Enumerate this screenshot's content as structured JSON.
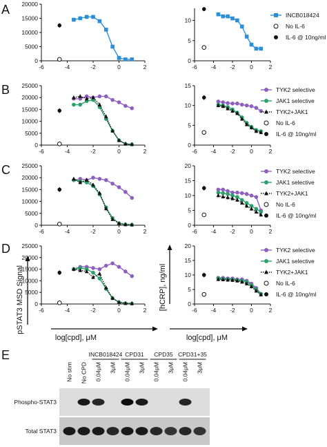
{
  "colors": {
    "inhibitor": "#2a8fd6",
    "tyk2": "#8e5fc0",
    "jak1": "#2aa06a",
    "combo": "#111111"
  },
  "chart_data": [
    {
      "panel": "A",
      "side": "left",
      "type": "scatter",
      "xlim": [
        -6,
        2
      ],
      "ylim": [
        0,
        20000
      ],
      "xticks": [
        "-6",
        "-4",
        "-2",
        "0",
        "2"
      ],
      "yticks": [
        "0",
        "5000",
        "10000",
        "15000",
        "20000"
      ],
      "series": [
        {
          "name": "INCB018424",
          "marker": "square",
          "color": "inhibitor",
          "x": [
            -3.5,
            -3,
            -2.5,
            -2,
            -1.5,
            -1,
            -0.5,
            0,
            0.5,
            1
          ],
          "y": [
            14500,
            15000,
            15500,
            15500,
            14000,
            11000,
            5000,
            1000,
            500,
            500
          ],
          "fit": true
        }
      ],
      "controls": {
        "no_il6": {
          "x": -4.6,
          "y": 500
        },
        "il6": {
          "x": -4.6,
          "y": 12500
        }
      }
    },
    {
      "panel": "A",
      "side": "right",
      "type": "scatter",
      "xlim": [
        -6,
        2
      ],
      "ylim": [
        0,
        13
      ],
      "xticks": [
        "-6",
        "-4",
        "-2",
        "0",
        "2"
      ],
      "yticks": [
        "0",
        "5",
        "10"
      ],
      "series": [
        {
          "name": "INCB018424",
          "marker": "square",
          "color": "inhibitor",
          "x": [
            -3.5,
            -3,
            -2.5,
            -2,
            -1.5,
            -1,
            -0.5,
            0,
            0.5,
            1
          ],
          "y": [
            11.5,
            11,
            11,
            10.5,
            10,
            8.5,
            6,
            4,
            3,
            3
          ],
          "fit": true
        }
      ],
      "controls": {
        "no_il6": {
          "x": -5,
          "y": 3.3
        },
        "il6": {
          "x": -5,
          "y": 12.8
        }
      }
    },
    {
      "panel": "B",
      "side": "left",
      "type": "scatter",
      "xlim": [
        -6,
        2
      ],
      "ylim": [
        0,
        25000
      ],
      "xticks": [
        "-6",
        "-4",
        "-2",
        "0",
        "2"
      ],
      "yticks": [
        "0",
        "5000",
        "10000",
        "15000",
        "20000",
        "25000"
      ],
      "series": [
        {
          "name": "TYK2 selective",
          "marker": "circle",
          "color": "tyk2",
          "x": [
            -3.5,
            -3,
            -2.5,
            -2,
            -1.5,
            -1,
            -0.5,
            0,
            0.5,
            1
          ],
          "y": [
            19500,
            19500,
            20500,
            20000,
            20500,
            20500,
            19000,
            18000,
            16500,
            15500
          ],
          "fit": true
        },
        {
          "name": "JAK1 selective",
          "marker": "circle",
          "color": "jak1",
          "x": [
            -3.5,
            -3,
            -2.5,
            -2,
            -1.5,
            -1,
            -0.5,
            0,
            0.5,
            1
          ],
          "y": [
            17000,
            17000,
            18500,
            19000,
            16000,
            11000,
            6000,
            2000,
            500,
            300
          ],
          "fit": true
        },
        {
          "name": "TYK2+JAK1",
          "marker": "triangle",
          "color": "combo",
          "x": [
            -3.5,
            -3,
            -2.5,
            -2,
            -1.5,
            -1,
            -0.5,
            0,
            0.5,
            1
          ],
          "y": [
            20000,
            20500,
            19500,
            20000,
            17000,
            12000,
            6000,
            2000,
            500,
            300
          ],
          "fit": true
        }
      ],
      "controls": {
        "no_il6": {
          "x": -4.6,
          "y": 500
        },
        "il6": {
          "x": -4.6,
          "y": 14500
        }
      }
    },
    {
      "panel": "B",
      "side": "right",
      "type": "scatter",
      "xlim": [
        -6,
        2
      ],
      "ylim": [
        0,
        15
      ],
      "xticks": [
        "-6",
        "-4",
        "-2",
        "0",
        "2"
      ],
      "yticks": [
        "0",
        "5",
        "10",
        "15"
      ],
      "series": [
        {
          "name": "TYK2 selective",
          "marker": "circle",
          "color": "tyk2",
          "x": [
            -3.5,
            -3,
            -2.5,
            -2,
            -1.5,
            -1,
            -0.5,
            0,
            0.5,
            1
          ],
          "y": [
            11,
            10.8,
            10.6,
            10.5,
            10.5,
            10.2,
            10,
            9.8,
            9.4,
            8.6
          ],
          "fit": true
        },
        {
          "name": "JAK1 selective",
          "marker": "circle",
          "color": "jak1",
          "x": [
            -3.5,
            -3,
            -2.5,
            -2,
            -1.5,
            -1,
            -0.5,
            0,
            0.5,
            1
          ],
          "y": [
            10.2,
            10,
            9.6,
            9,
            8.2,
            7,
            5.6,
            4.6,
            3.8,
            3.5
          ],
          "fit": true
        },
        {
          "name": "TYK2+JAK1",
          "marker": "triangle",
          "color": "combo",
          "x": [
            -3.5,
            -3,
            -2.5,
            -2,
            -1.5,
            -1,
            -0.5,
            0,
            0.5,
            1
          ],
          "y": [
            10,
            9.8,
            9.2,
            8.6,
            8,
            6.6,
            5.2,
            4.4,
            3.5,
            3.2
          ],
          "fit": false
        }
      ],
      "controls": {
        "no_il6": {
          "x": -5,
          "y": 3.2
        },
        "il6": {
          "x": -5,
          "y": 12
        }
      }
    },
    {
      "panel": "C",
      "side": "left",
      "type": "scatter",
      "xlim": [
        -6,
        2
      ],
      "ylim": [
        0,
        25000
      ],
      "xticks": [
        "-6",
        "-4",
        "-2",
        "0",
        "2"
      ],
      "yticks": [
        "0",
        "5000",
        "10000",
        "15000",
        "20000",
        "25000"
      ],
      "series": [
        {
          "name": "TYK2 selective",
          "marker": "circle",
          "color": "tyk2",
          "x": [
            -3.5,
            -3,
            -2.5,
            -2,
            -1.5,
            -1,
            -0.5,
            0,
            0.5,
            1
          ],
          "y": [
            19000,
            19500,
            19000,
            20000,
            19500,
            19000,
            17500,
            16000,
            14000,
            11500
          ],
          "fit": true
        },
        {
          "name": "JAK1 selective",
          "marker": "circle",
          "color": "jak1",
          "x": [
            -3.5,
            -3,
            -2.5,
            -2,
            -1.5,
            -1,
            -0.5,
            0,
            0.5,
            1
          ],
          "y": [
            19000,
            18500,
            18000,
            16500,
            13000,
            7500,
            3000,
            800,
            300,
            200
          ],
          "fit": true
        },
        {
          "name": "TYK2+JAK1",
          "marker": "triangle",
          "color": "combo",
          "x": [
            -3.5,
            -3,
            -2.5,
            -2,
            -1.5,
            -1,
            -0.5,
            0,
            0.5,
            1
          ],
          "y": [
            19500,
            18000,
            19000,
            17000,
            13500,
            7000,
            2500,
            800,
            300,
            200
          ],
          "fit": false
        }
      ],
      "controls": {
        "no_il6": {
          "x": -4.6,
          "y": 500
        },
        "il6": {
          "x": -4.6,
          "y": 15000
        }
      }
    },
    {
      "panel": "C",
      "side": "right",
      "type": "scatter",
      "xlim": [
        -6,
        2
      ],
      "ylim": [
        0,
        20
      ],
      "xticks": [
        "-6",
        "-4",
        "-2",
        "0",
        "2"
      ],
      "yticks": [
        "0",
        "5",
        "10",
        "15",
        "20"
      ],
      "series": [
        {
          "name": "TYK2 selective",
          "marker": "circle",
          "color": "tyk2",
          "x": [
            -3.5,
            -3,
            -2.5,
            -2,
            -1.5,
            -1,
            -0.5,
            0,
            0.5,
            1
          ],
          "y": [
            12,
            12,
            11.5,
            11,
            11,
            10.8,
            10.5,
            10,
            9.5,
            5
          ],
          "fit": true
        },
        {
          "name": "JAK1 selective",
          "marker": "circle",
          "color": "jak1",
          "x": [
            -3.5,
            -3,
            -2.5,
            -2,
            -1.5,
            -1,
            -0.5,
            0,
            0.5,
            1
          ],
          "y": [
            11,
            10.8,
            10.5,
            10,
            9.5,
            8.5,
            7.5,
            6.5,
            5.5,
            4.5
          ],
          "fit": true
        },
        {
          "name": "TYK2+JAK1",
          "marker": "triangle",
          "color": "combo",
          "x": [
            -3.5,
            -3,
            -2.5,
            -2,
            -1.5,
            -1,
            -0.5,
            0,
            0.5,
            1
          ],
          "y": [
            10,
            9.6,
            9.3,
            9,
            8.5,
            7.5,
            6.5,
            5.5,
            4.5,
            3.5
          ],
          "fit": false
        }
      ],
      "controls": {
        "no_il6": {
          "x": -5,
          "y": 3.5
        },
        "il6": {
          "x": -5,
          "y": 12.5
        }
      }
    },
    {
      "panel": "D",
      "side": "left",
      "type": "scatter",
      "xlim": [
        -6,
        2
      ],
      "ylim": [
        0,
        25000
      ],
      "xticks": [
        "-6",
        "-4",
        "-2",
        "0",
        "2"
      ],
      "yticks": [
        "0",
        "5000",
        "10000",
        "15000",
        "20000",
        "25000"
      ],
      "ylabel": "pSTAT3 MSD Signal",
      "xlabel": "log[cpd], μM",
      "series": [
        {
          "name": "TYK2 selective",
          "marker": "circle",
          "color": "tyk2",
          "x": [
            -3.5,
            -3,
            -2.5,
            -2,
            -1.5,
            -1,
            -0.5,
            0,
            0.5,
            1
          ],
          "y": [
            15000,
            16000,
            16000,
            15500,
            15000,
            16500,
            17500,
            16000,
            14000,
            12000
          ],
          "fit": true
        },
        {
          "name": "JAK1 selective",
          "marker": "circle",
          "color": "jak1",
          "x": [
            -3.5,
            -3,
            -2.5,
            -2,
            -1.5,
            -1,
            -0.5,
            0,
            0.5,
            1
          ],
          "y": [
            15000,
            15500,
            15000,
            13500,
            11000,
            6500,
            2500,
            700,
            300,
            200
          ],
          "fit": true
        },
        {
          "name": "TYK2+JAK1",
          "marker": "triangle",
          "color": "combo",
          "x": [
            -3.5,
            -3,
            -2.5,
            -2,
            -1.5,
            -1,
            -0.5,
            0,
            0.5,
            1
          ],
          "y": [
            15000,
            14500,
            14000,
            11500,
            13000,
            7000,
            2500,
            800,
            300,
            200
          ],
          "fit": false
        }
      ],
      "controls": {
        "no_il6": {
          "x": -4.6,
          "y": 500
        },
        "il6": {
          "x": -4.6,
          "y": 13500
        }
      }
    },
    {
      "panel": "D",
      "side": "right",
      "type": "scatter",
      "xlim": [
        -6,
        2
      ],
      "ylim": [
        0,
        20
      ],
      "xticks": [
        "-6",
        "-4",
        "-2",
        "0",
        "2"
      ],
      "yticks": [
        "0",
        "5",
        "10",
        "15",
        "20"
      ],
      "ylabel": "[hCRP], ng/ml",
      "xlabel": "log[cpd], μM",
      "series": [
        {
          "name": "TYK2 selective",
          "marker": "circle",
          "color": "tyk2",
          "x": [
            -3.5,
            -3,
            -2.5,
            -2,
            -1.5,
            -1,
            -0.5,
            0,
            0.5,
            1
          ],
          "y": [
            9,
            9,
            8.8,
            8.8,
            8.5,
            8.5,
            8,
            7,
            5.5,
            3.5
          ],
          "fit": true
        },
        {
          "name": "JAK1 selective",
          "marker": "circle",
          "color": "jak1",
          "x": [
            -3.5,
            -3,
            -2.5,
            -2,
            -1.5,
            -1,
            -0.5,
            0,
            0.5,
            1
          ],
          "y": [
            8.8,
            8.6,
            8.5,
            8.4,
            8.2,
            8,
            7.6,
            6.5,
            5,
            3.5
          ],
          "fit": true
        },
        {
          "name": "TYK2+JAK1",
          "marker": "triangle",
          "color": "combo",
          "x": [
            -3.5,
            -3,
            -2.5,
            -2,
            -1.5,
            -1,
            -0.5,
            0,
            0.5,
            1
          ],
          "y": [
            8.5,
            8.4,
            8.3,
            8.2,
            8,
            7.6,
            7,
            6,
            4.5,
            3.2
          ],
          "fit": false
        }
      ],
      "controls": {
        "no_il6": {
          "x": -5,
          "y": 3.3
        },
        "il6": {
          "x": -5,
          "y": 10
        }
      }
    }
  ],
  "panels": {
    "A": {
      "letter": "A"
    },
    "B": {
      "letter": "B"
    },
    "C": {
      "letter": "C"
    },
    "D": {
      "letter": "D"
    },
    "E": {
      "letter": "E"
    }
  },
  "legends": {
    "A": [
      {
        "label": "INCB018424",
        "marker": "square",
        "color": "inhibitor",
        "line": "solid"
      },
      {
        "label": "No IL-6",
        "marker": "open-circle",
        "color": "combo",
        "line": "none"
      },
      {
        "label": "IL-6 @ 10ng/ml",
        "marker": "filled-circle",
        "color": "combo",
        "line": "none"
      }
    ],
    "B": [
      {
        "label": "TYK2 selective",
        "marker": "circle",
        "color": "tyk2",
        "line": "solid"
      },
      {
        "label": "JAK1 selective",
        "marker": "circle",
        "color": "jak1",
        "line": "solid"
      },
      {
        "label": "TYK2+JAK1",
        "marker": "triangle",
        "color": "combo",
        "line": "dotted"
      },
      {
        "label": "No IL-6",
        "marker": "open-circle",
        "color": "combo",
        "line": "none"
      },
      {
        "label": "IL-6 @ 10ng/ml",
        "marker": "filled-circle",
        "color": "combo",
        "line": "none"
      }
    ],
    "C": [
      {
        "label": "TYK2 selective",
        "marker": "circle",
        "color": "tyk2",
        "line": "solid"
      },
      {
        "label": "JAK1 selective",
        "marker": "circle",
        "color": "jak1",
        "line": "solid"
      },
      {
        "label": "TYK2+JAK1",
        "marker": "triangle",
        "color": "combo",
        "line": "dotted"
      },
      {
        "label": "No IL-6",
        "marker": "open-circle",
        "color": "combo",
        "line": "none"
      },
      {
        "label": "IL-6 @ 10ng/ml",
        "marker": "filled-circle",
        "color": "combo",
        "line": "none"
      }
    ],
    "D": [
      {
        "label": "TYK2 selective",
        "marker": "circle",
        "color": "tyk2",
        "line": "solid"
      },
      {
        "label": "JAK1 selective",
        "marker": "circle",
        "color": "jak1",
        "line": "solid"
      },
      {
        "label": "TYK2+JAK1",
        "marker": "triangle",
        "color": "combo",
        "line": "dotted"
      },
      {
        "label": "No IL-6",
        "marker": "open-circle",
        "color": "combo",
        "line": "none"
      },
      {
        "label": "IL-6 @ 10ng/ml",
        "marker": "filled-circle",
        "color": "combo",
        "line": "none"
      }
    ]
  },
  "axis_titles": {
    "y_left": "pSTAT3 MSD Signal",
    "y_right": "[hCRP], ng/ml",
    "x_left": "log[cpd], μM",
    "x_right": "log[cpd], μM"
  },
  "blot": {
    "groups": [
      {
        "label": "INCB018424"
      },
      {
        "label": "CPD31"
      },
      {
        "label": "CPD35"
      },
      {
        "label": "CPD31+35"
      }
    ],
    "lanes": [
      "No stim",
      "No CPD",
      "0.04μM",
      "3μM",
      "0.04μM",
      "3μM",
      "0.04μM",
      "3μM",
      "0.04μM",
      "3μM"
    ],
    "rows": [
      {
        "label": "Phospho-STAT3",
        "intensity": [
          0.0,
          0.9,
          0.85,
          0.0,
          0.95,
          0.9,
          0.0,
          0.0,
          0.85,
          0.0
        ]
      },
      {
        "label": "Total STAT3",
        "intensity": [
          0.9,
          0.9,
          0.9,
          0.85,
          0.9,
          0.9,
          0.85,
          0.8,
          0.85,
          0.8
        ]
      }
    ]
  }
}
